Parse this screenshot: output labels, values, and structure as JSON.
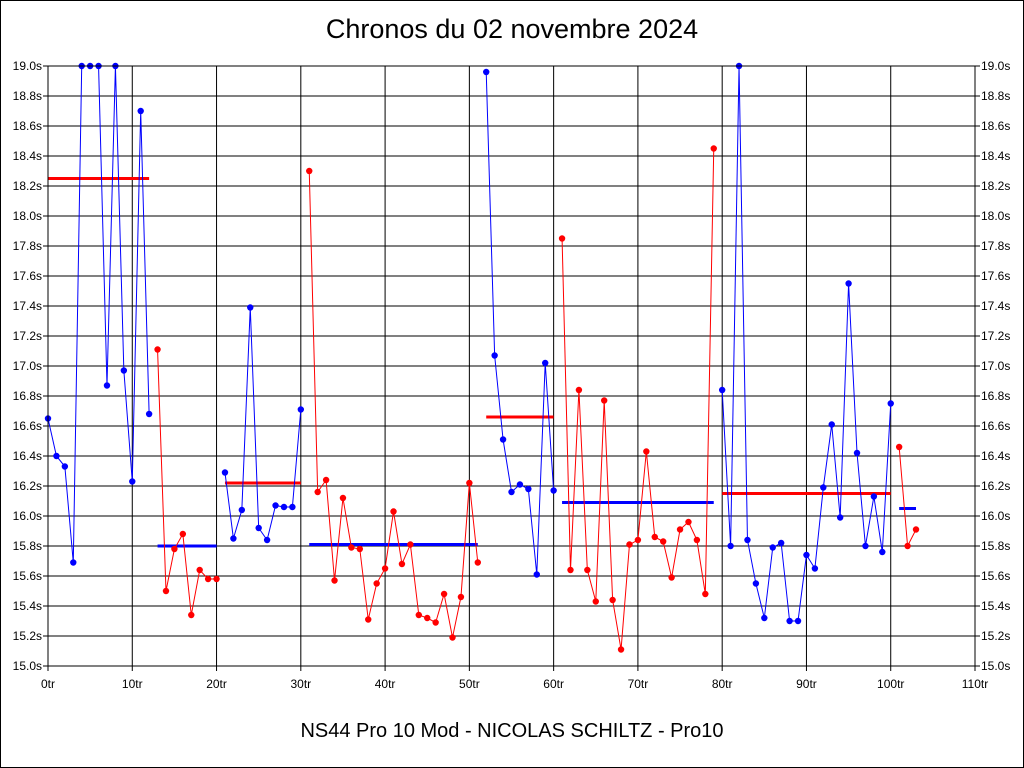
{
  "chart_data": {
    "type": "line",
    "title": "Chronos du 02 novembre 2024",
    "subtitle": "NS44 Pro 10 Mod - NICOLAS SCHILTZ - Pro10",
    "xlabel": "",
    "ylabel": "",
    "xlim": [
      0,
      110
    ],
    "ylim": [
      15.0,
      19.0
    ],
    "x_tick_values": [
      0,
      10,
      20,
      30,
      40,
      50,
      60,
      70,
      80,
      90,
      100,
      110
    ],
    "x_tick_labels": [
      "0tr",
      "10tr",
      "20tr",
      "30tr",
      "40tr",
      "50tr",
      "60tr",
      "70tr",
      "80tr",
      "90tr",
      "100tr",
      "110tr"
    ],
    "y_tick_values": [
      15.0,
      15.2,
      15.4,
      15.6,
      15.8,
      16.0,
      16.2,
      16.4,
      16.6,
      16.8,
      17.0,
      17.2,
      17.4,
      17.6,
      17.8,
      18.0,
      18.2,
      18.4,
      18.6,
      18.8,
      19.0
    ],
    "y_tick_labels": [
      "15.0s",
      "15.2s",
      "15.4s",
      "15.6s",
      "15.8s",
      "16.0s",
      "16.2s",
      "16.4s",
      "16.6s",
      "16.8s",
      "17.0s",
      "17.2s",
      "17.4s",
      "17.6s",
      "17.8s",
      "18.0s",
      "18.2s",
      "18.4s",
      "18.6s",
      "18.8s",
      "19.0s"
    ],
    "grid": true,
    "colors": {
      "blue": "#0000ff",
      "red": "#ff0000"
    },
    "series": [
      {
        "color": "#0000ff",
        "x": [
          0,
          1,
          2,
          3,
          4,
          5,
          6,
          7,
          8,
          9,
          10,
          11,
          12
        ],
        "values": [
          16.65,
          16.4,
          16.33,
          15.69,
          19.0,
          19.0,
          19.0,
          16.87,
          19.0,
          16.97,
          16.23,
          18.7,
          16.68
        ]
      },
      {
        "color": "#ff0000",
        "x": [
          13,
          14,
          15,
          16,
          17,
          18,
          19,
          20
        ],
        "values": [
          17.11,
          15.5,
          15.78,
          15.88,
          15.34,
          15.64,
          15.58,
          15.58
        ]
      },
      {
        "color": "#0000ff",
        "x": [
          21,
          22,
          23,
          24,
          25,
          26,
          27,
          28,
          29,
          30
        ],
        "values": [
          16.29,
          15.85,
          16.04,
          17.39,
          15.92,
          15.84,
          16.07,
          16.06,
          16.06,
          16.71
        ]
      },
      {
        "color": "#ff0000",
        "x": [
          31,
          32,
          33,
          34,
          35,
          36,
          37,
          38,
          39,
          40,
          41,
          42,
          43,
          44,
          45,
          46,
          47,
          48,
          49,
          50,
          51
        ],
        "values": [
          18.3,
          16.16,
          16.24,
          15.57,
          16.12,
          15.79,
          15.78,
          15.31,
          15.55,
          15.65,
          16.03,
          15.68,
          15.81,
          15.34,
          15.32,
          15.29,
          15.48,
          15.19,
          15.46,
          16.22,
          15.69
        ]
      },
      {
        "color": "#0000ff",
        "x": [
          52,
          53,
          54,
          55,
          56,
          57,
          58,
          59,
          60
        ],
        "values": [
          18.96,
          17.07,
          16.51,
          16.16,
          16.21,
          16.18,
          15.61,
          17.02,
          16.17
        ]
      },
      {
        "color": "#ff0000",
        "x": [
          61,
          62,
          63,
          64,
          65,
          66,
          67,
          68,
          69,
          70,
          71,
          72,
          73,
          74,
          75,
          76,
          77,
          78,
          79
        ],
        "values": [
          17.85,
          15.64,
          16.84,
          15.64,
          15.43,
          16.77,
          15.44,
          15.11,
          15.81,
          15.84,
          16.43,
          15.86,
          15.83,
          15.59,
          15.91,
          15.96,
          15.84,
          15.48,
          18.45
        ]
      },
      {
        "color": "#0000ff",
        "x": [
          80,
          81,
          82,
          83,
          84,
          85,
          86,
          87,
          88,
          89,
          90,
          91,
          92,
          93,
          94,
          95,
          96,
          97,
          98,
          99,
          100
        ],
        "values": [
          16.84,
          15.8,
          19.0,
          15.84,
          15.55,
          15.32,
          15.79,
          15.82,
          15.3,
          15.3,
          15.74,
          15.65,
          16.19,
          16.61,
          15.99,
          17.55,
          16.42,
          15.8,
          16.13,
          15.76,
          16.75
        ]
      },
      {
        "color": "#ff0000",
        "x": [
          101,
          102,
          103
        ],
        "values": [
          16.46,
          15.8,
          15.91
        ]
      }
    ],
    "averages": [
      {
        "color": "#ff0000",
        "x_start": 0,
        "x_end": 12,
        "value": 18.25
      },
      {
        "color": "#0000ff",
        "x_start": 13,
        "x_end": 20,
        "value": 15.8
      },
      {
        "color": "#ff0000",
        "x_start": 21,
        "x_end": 30,
        "value": 16.22
      },
      {
        "color": "#0000ff",
        "x_start": 31,
        "x_end": 51,
        "value": 15.81
      },
      {
        "color": "#ff0000",
        "x_start": 52,
        "x_end": 60,
        "value": 16.66
      },
      {
        "color": "#0000ff",
        "x_start": 61,
        "x_end": 79,
        "value": 16.09
      },
      {
        "color": "#ff0000",
        "x_start": 80,
        "x_end": 100,
        "value": 16.15
      },
      {
        "color": "#0000ff",
        "x_start": 101,
        "x_end": 103,
        "value": 16.05
      }
    ]
  }
}
